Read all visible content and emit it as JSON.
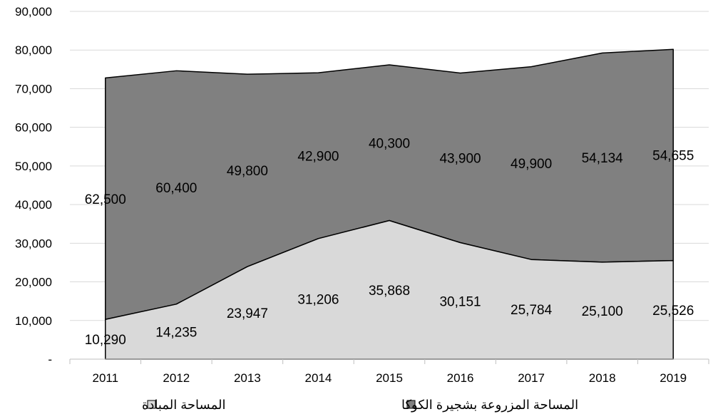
{
  "chart_data": {
    "type": "area",
    "stacked": true,
    "categories": [
      "2011",
      "2012",
      "2013",
      "2014",
      "2015",
      "2016",
      "2017",
      "2018",
      "2019"
    ],
    "series": [
      {
        "name": "المساحة المبادة",
        "color": "#d9d9d9",
        "values": [
          10290,
          14235,
          23947,
          31206,
          35868,
          30151,
          25784,
          25100,
          25526
        ],
        "labels": [
          "10,290",
          "14,235",
          "23,947",
          "31,206",
          "35,868",
          "30,151",
          "25,784",
          "25,100",
          "25,526"
        ]
      },
      {
        "name": "المساحة المزروعة بشجيرة الكوكا",
        "color": "#808080",
        "values": [
          62500,
          60400,
          49800,
          42900,
          40300,
          43900,
          49900,
          54134,
          54655
        ],
        "labels": [
          "62,500",
          "60,400",
          "49,800",
          "42,900",
          "40,300",
          "43,900",
          "49,900",
          "54,134",
          "54,655"
        ]
      }
    ],
    "ylim": [
      0,
      90000
    ],
    "y_ticks": [
      "-",
      "10,000",
      "20,000",
      "30,000",
      "40,000",
      "50,000",
      "60,000",
      "70,000",
      "80,000",
      "90,000"
    ],
    "grid": true,
    "legend_position": "bottom",
    "title": "",
    "xlabel": "",
    "ylabel": ""
  }
}
